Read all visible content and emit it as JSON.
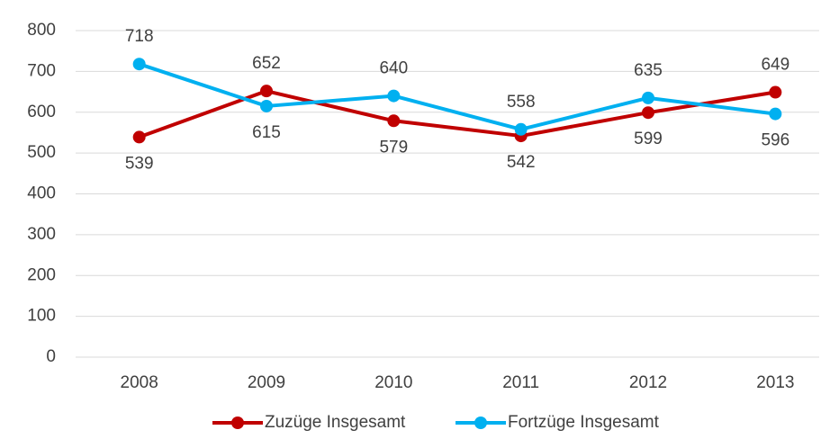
{
  "chart_data": {
    "type": "line",
    "categories": [
      "2008",
      "2009",
      "2010",
      "2011",
      "2012",
      "2013"
    ],
    "series": [
      {
        "name": "Zuzüge Insgesamt",
        "color": "#c00000",
        "values": [
          539,
          652,
          579,
          542,
          599,
          649
        ]
      },
      {
        "name": "Fortzüge Insgesamt",
        "color": "#00b0f0",
        "values": [
          718,
          615,
          640,
          558,
          635,
          596
        ]
      }
    ],
    "ylim": [
      0,
      800
    ],
    "yticks": [
      0,
      100,
      200,
      300,
      400,
      500,
      600,
      700,
      800
    ],
    "grid": true,
    "legend": "bottom",
    "data_labels": true
  }
}
